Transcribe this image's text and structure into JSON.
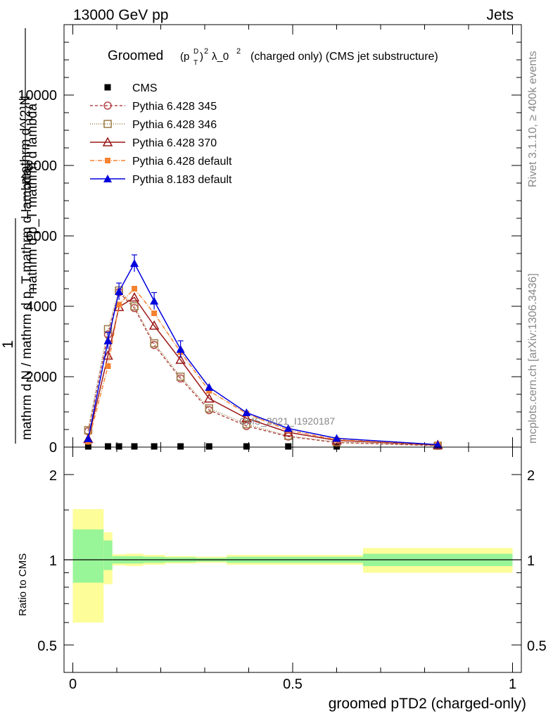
{
  "header": {
    "energy_label": "13000 GeV pp",
    "process_label": "Jets"
  },
  "side_labels": {
    "rivet": "Rivet 3.1.10, ≥ 400k events",
    "mcplots": "mcplots.cern.ch [arXiv:1306.3436]"
  },
  "analysis_label": "CMS_2021_I1920187",
  "colors": {
    "cms": "#000000",
    "p345": "#b5494a",
    "p346": "#9b7b45",
    "p370": "#9c1818",
    "p6def": "#f58231",
    "p8def": "#0000dd",
    "band_inner": "#98f598",
    "band_outer": "#fdfd9a"
  },
  "chart_data": [
    {
      "type": "line",
      "title": "Groomed (p_T^D)^2 λ_0^2 (charged only) (CMS jet substructure)",
      "title_parts": {
        "pre": "Groomed",
        "p": "(p",
        "sup_d": "D",
        "sub_t": "T",
        "close": ")",
        "sq": "2",
        "lam": "λ_0",
        "sq2": "2",
        "post": "(charged only) (CMS jet substructure)"
      },
      "ylabel_parts": [
        "1",
        "mathrm d N / mathrm d p_T mathrm d lambda",
        "mathrm d^2N",
        "mathrm d p_T mathrm d lambda"
      ],
      "ylabel_line1": "mathrm d^{2}N",
      "ylabel_line2": "mathrm d p_T mathrm d lambda",
      "ylabel_line3": "1",
      "ylabel_line4": "mathrm d N / mathrm d p_T mathrm d lambda",
      "ylim": [
        0,
        12000
      ],
      "xlim": [
        -0.02,
        1.02
      ],
      "yticks": [
        0,
        2000,
        4000,
        6000,
        8000,
        10000
      ],
      "ytick_labels": [
        "0",
        "2000",
        "4000",
        "6000",
        "8000",
        "10000"
      ],
      "x": [
        0.035,
        0.08,
        0.105,
        0.14,
        0.185,
        0.245,
        0.31,
        0.395,
        0.49,
        0.6,
        0.83
      ],
      "series": [
        {
          "name": "CMS",
          "key": "cms",
          "marker": "filled-square",
          "dash": "none",
          "values": [
            20,
            20,
            20,
            20,
            20,
            20,
            20,
            20,
            20,
            20,
            20
          ]
        },
        {
          "name": "Pythia 6.428 345",
          "key": "p345",
          "marker": "open-circle",
          "dash": "4,3",
          "values": [
            450,
            3200,
            4400,
            3950,
            2900,
            1950,
            1050,
            600,
            300,
            130,
            40
          ]
        },
        {
          "name": "Pythia 6.428 346",
          "key": "p346",
          "marker": "open-square",
          "dash": "1,2",
          "values": [
            480,
            3350,
            4450,
            4000,
            2950,
            2000,
            1100,
            650,
            320,
            140,
            40
          ]
        },
        {
          "name": "Pythia 6.428 370",
          "key": "p370",
          "marker": "open-triangle",
          "dash": "none",
          "values": [
            230,
            2600,
            3980,
            4250,
            3450,
            2480,
            1380,
            820,
            420,
            190,
            60
          ]
        },
        {
          "name": "Pythia 6.428 default",
          "key": "p6def",
          "marker": "filled-square-small",
          "dash": "6,2,1,2",
          "values": [
            150,
            2300,
            4050,
            4500,
            3800,
            2700,
            1600,
            950,
            480,
            210,
            70
          ]
        },
        {
          "name": "Pythia 8.183 default",
          "key": "p8def",
          "marker": "filled-triangle",
          "dash": "none",
          "values": [
            240,
            3020,
            4420,
            5220,
            4150,
            2780,
            1700,
            980,
            530,
            250,
            70
          ]
        }
      ]
    },
    {
      "type": "area",
      "ylabel": "Ratio to CMS",
      "xlabel": "groomed pTD2 (charged-only)",
      "xlim": [
        -0.02,
        1.02
      ],
      "ylim": [
        0.38,
        2.25
      ],
      "yticks": [
        0.5,
        1,
        2
      ],
      "ytick_labels": [
        "0.5",
        "1",
        "2"
      ],
      "xticks": [
        0,
        0.5,
        1
      ],
      "xtick_labels": [
        "0",
        "0.5",
        "1"
      ],
      "bins": [
        {
          "lo": 0.0,
          "hi": 0.07,
          "inner": [
            0.83,
            1.28
          ],
          "outer": [
            0.6,
            1.51
          ]
        },
        {
          "lo": 0.07,
          "hi": 0.09,
          "inner": [
            0.92,
            1.17
          ],
          "outer": [
            0.82,
            1.25
          ]
        },
        {
          "lo": 0.09,
          "hi": 0.12,
          "inner": [
            0.97,
            1.03
          ],
          "outer": [
            0.955,
            1.045
          ]
        },
        {
          "lo": 0.12,
          "hi": 0.16,
          "inner": [
            0.97,
            1.03
          ],
          "outer": [
            0.95,
            1.05
          ]
        },
        {
          "lo": 0.16,
          "hi": 0.21,
          "inner": [
            0.975,
            1.025
          ],
          "outer": [
            0.96,
            1.04
          ]
        },
        {
          "lo": 0.21,
          "hi": 0.28,
          "inner": [
            0.98,
            1.02
          ],
          "outer": [
            0.97,
            1.03
          ]
        },
        {
          "lo": 0.28,
          "hi": 0.35,
          "inner": [
            0.985,
            1.015
          ],
          "outer": [
            0.975,
            1.025
          ]
        },
        {
          "lo": 0.35,
          "hi": 0.44,
          "inner": [
            0.975,
            1.025
          ],
          "outer": [
            0.96,
            1.04
          ]
        },
        {
          "lo": 0.44,
          "hi": 0.66,
          "inner": [
            0.975,
            1.025
          ],
          "outer": [
            0.96,
            1.04
          ]
        },
        {
          "lo": 0.66,
          "hi": 1.0,
          "inner": [
            0.95,
            1.05
          ],
          "outer": [
            0.9,
            1.1
          ]
        }
      ]
    }
  ]
}
